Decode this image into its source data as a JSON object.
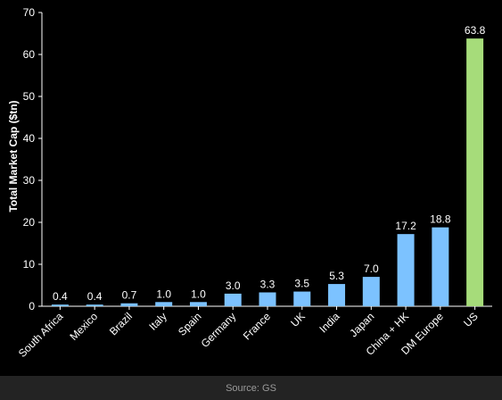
{
  "source": "Source: GS",
  "colors": {
    "background": "#000000",
    "default_bar": "#7cc2ff",
    "highlight_bar": "#a6dc7a",
    "text": "#ffffff",
    "axis": "#ffffff"
  },
  "chart_data": {
    "type": "bar",
    "title": "",
    "xlabel": "",
    "ylabel": "Total Market Cap ($tn)",
    "ylim": [
      0,
      70
    ],
    "yticks": [
      0,
      10,
      20,
      30,
      40,
      50,
      60,
      70
    ],
    "grid": false,
    "categories": [
      "South Africa",
      "Mexico",
      "Brazil",
      "Italy",
      "Spain",
      "Germany",
      "France",
      "UK",
      "India",
      "Japan",
      "China + HK",
      "DM Europe",
      "US"
    ],
    "values": [
      0.4,
      0.4,
      0.7,
      1.0,
      1.0,
      3.0,
      3.3,
      3.5,
      5.3,
      7.0,
      17.2,
      18.8,
      63.8
    ],
    "data_labels": [
      "0.4",
      "0.4",
      "0.7",
      "1.0",
      "1.0",
      "3.0",
      "3.3",
      "3.5",
      "5.3",
      "7.0",
      "17.2",
      "18.8",
      "63.8"
    ],
    "highlight_category": "US"
  }
}
